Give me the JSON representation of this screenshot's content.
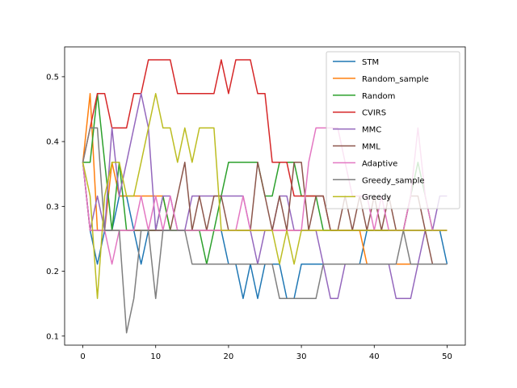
{
  "chart_data": {
    "type": "line",
    "title": "",
    "xlabel": "",
    "ylabel": "",
    "xlim": [
      -2.5,
      52.5
    ],
    "ylim": [
      0.086,
      0.546
    ],
    "xticks": [
      0,
      10,
      20,
      30,
      40,
      50
    ],
    "yticks": [
      0.1,
      0.2,
      0.3,
      0.4,
      0.5
    ],
    "xtick_labels": [
      "0",
      "10",
      "20",
      "30",
      "40",
      "50"
    ],
    "ytick_labels": [
      "0.1",
      "0.2",
      "0.3",
      "0.4",
      "0.5"
    ],
    "grid": false,
    "legend_position": "top-right",
    "x": [
      0,
      1,
      2,
      3,
      4,
      5,
      6,
      7,
      8,
      9,
      10,
      11,
      12,
      13,
      14,
      15,
      16,
      17,
      18,
      19,
      20,
      21,
      22,
      23,
      24,
      25,
      26,
      27,
      28,
      29,
      30,
      31,
      32,
      33,
      34,
      35,
      36,
      37,
      38,
      39,
      40,
      41,
      42,
      43,
      44,
      45,
      46,
      47,
      48,
      49,
      50
    ],
    "series": [
      {
        "name": "STM",
        "color": "#1f77b4",
        "values": [
          0.368,
          0.263,
          0.211,
          0.263,
          0.263,
          0.316,
          0.316,
          0.263,
          0.211,
          0.263,
          0.263,
          0.263,
          0.263,
          0.263,
          0.263,
          0.263,
          0.263,
          0.263,
          0.263,
          0.263,
          0.211,
          0.211,
          0.158,
          0.211,
          0.158,
          0.211,
          0.211,
          0.211,
          0.158,
          0.158,
          0.211,
          0.211,
          0.211,
          0.211,
          0.211,
          0.211,
          0.211,
          0.211,
          0.211,
          0.263,
          0.263,
          0.263,
          0.263,
          0.263,
          0.263,
          0.263,
          0.263,
          0.263,
          0.263,
          0.263,
          0.211
        ]
      },
      {
        "name": "Random_sample",
        "color": "#ff7f0e",
        "values": [
          0.368,
          0.474,
          0.263,
          0.263,
          0.368,
          0.316,
          0.316,
          0.316,
          0.316,
          0.316,
          0.316,
          0.316,
          0.263,
          0.263,
          0.263,
          0.263,
          0.263,
          0.263,
          0.263,
          0.263,
          0.263,
          0.263,
          0.263,
          0.263,
          0.263,
          0.263,
          0.263,
          0.263,
          0.263,
          0.263,
          0.263,
          0.263,
          0.263,
          0.263,
          0.263,
          0.263,
          0.263,
          0.263,
          0.263,
          0.211,
          0.211,
          0.211,
          0.211,
          0.211,
          0.211,
          0.211,
          0.211,
          0.211,
          0.211,
          0.211,
          0.211
        ]
      },
      {
        "name": "Random",
        "color": "#2ca02c",
        "values": [
          0.368,
          0.368,
          0.474,
          0.368,
          0.263,
          0.368,
          0.263,
          0.263,
          0.263,
          0.263,
          0.263,
          0.316,
          0.263,
          0.263,
          0.263,
          0.263,
          0.263,
          0.211,
          0.263,
          0.316,
          0.368,
          0.368,
          0.368,
          0.368,
          0.368,
          0.316,
          0.316,
          0.368,
          0.368,
          0.368,
          0.316,
          0.316,
          0.316,
          0.263,
          0.263,
          0.263,
          0.263,
          0.263,
          0.263,
          0.263,
          0.263,
          0.263,
          0.263,
          0.263,
          0.263,
          0.316,
          0.368,
          0.316,
          0.263,
          0.263,
          0.263
        ]
      },
      {
        "name": "CVIRS",
        "color": "#d62728",
        "values": [
          0.368,
          0.421,
          0.474,
          0.474,
          0.421,
          0.421,
          0.421,
          0.474,
          0.474,
          0.526,
          0.526,
          0.526,
          0.526,
          0.474,
          0.474,
          0.474,
          0.474,
          0.474,
          0.474,
          0.526,
          0.474,
          0.526,
          0.526,
          0.526,
          0.474,
          0.474,
          0.368,
          0.368,
          0.368,
          0.316,
          0.316,
          0.316,
          0.316,
          0.316,
          0.263,
          0.263,
          0.263,
          0.263,
          0.263,
          0.263,
          0.263,
          0.263,
          0.263,
          0.263,
          0.263,
          0.263,
          0.263,
          0.263,
          0.263,
          0.263,
          0.263
        ]
      },
      {
        "name": "MMC",
        "color": "#9467bd",
        "values": [
          0.368,
          0.263,
          0.316,
          0.263,
          0.421,
          0.316,
          0.368,
          0.421,
          0.474,
          0.421,
          0.263,
          0.316,
          0.316,
          0.263,
          0.263,
          0.316,
          0.316,
          0.316,
          0.316,
          0.316,
          0.316,
          0.316,
          0.316,
          0.263,
          0.211,
          0.263,
          0.263,
          0.316,
          0.316,
          0.263,
          0.263,
          0.263,
          0.263,
          0.211,
          0.158,
          0.158,
          0.211,
          0.211,
          0.211,
          0.211,
          0.211,
          0.211,
          0.211,
          0.158,
          0.158,
          0.158,
          0.211,
          0.263,
          0.263,
          0.316,
          0.316
        ]
      },
      {
        "name": "MML",
        "color": "#8c564b",
        "values": [
          0.368,
          0.263,
          0.263,
          0.263,
          0.263,
          0.263,
          0.263,
          0.263,
          0.263,
          0.263,
          0.263,
          0.263,
          0.263,
          0.316,
          0.368,
          0.263,
          0.316,
          0.263,
          0.316,
          0.316,
          0.263,
          0.263,
          0.263,
          0.263,
          0.368,
          0.316,
          0.263,
          0.316,
          0.263,
          0.368,
          0.368,
          0.263,
          0.316,
          0.316,
          0.263,
          0.263,
          0.316,
          0.263,
          0.316,
          0.263,
          0.316,
          0.263,
          0.316,
          0.263,
          0.263,
          0.316,
          0.316,
          0.263,
          0.211,
          0.211,
          0.211
        ]
      },
      {
        "name": "Adaptive",
        "color": "#e377c2",
        "values": [
          0.368,
          0.263,
          0.263,
          0.263,
          0.211,
          0.263,
          0.263,
          0.263,
          0.316,
          0.263,
          0.316,
          0.263,
          0.316,
          0.263,
          0.263,
          0.263,
          0.263,
          0.263,
          0.263,
          0.263,
          0.263,
          0.263,
          0.316,
          0.263,
          0.263,
          0.263,
          0.263,
          0.263,
          0.263,
          0.263,
          0.263,
          0.368,
          0.421,
          0.421,
          0.421,
          0.421,
          0.368,
          0.316,
          0.316,
          0.316,
          0.263,
          0.316,
          0.263,
          0.263,
          0.263,
          0.316,
          0.421,
          0.316,
          0.263,
          0.263,
          0.263
        ]
      },
      {
        "name": "Greedy_sample",
        "color": "#7f7f7f",
        "values": [
          0.368,
          0.421,
          0.421,
          0.263,
          0.263,
          0.263,
          0.105,
          0.158,
          0.263,
          0.263,
          0.158,
          0.263,
          0.263,
          0.263,
          0.263,
          0.211,
          0.211,
          0.211,
          0.211,
          0.211,
          0.211,
          0.211,
          0.211,
          0.211,
          0.211,
          0.211,
          0.211,
          0.158,
          0.158,
          0.158,
          0.158,
          0.158,
          0.158,
          0.211,
          0.211,
          0.211,
          0.211,
          0.211,
          0.211,
          0.211,
          0.211,
          0.211,
          0.211,
          0.211,
          0.263,
          0.211,
          0.211,
          0.211,
          0.211,
          0.211,
          0.211
        ]
      },
      {
        "name": "Greedy",
        "color": "#bcbd22",
        "values": [
          0.368,
          0.316,
          0.158,
          0.316,
          0.368,
          0.368,
          0.316,
          0.316,
          0.368,
          0.421,
          0.474,
          0.421,
          0.421,
          0.368,
          0.421,
          0.368,
          0.421,
          0.421,
          0.421,
          0.263,
          0.263,
          0.263,
          0.263,
          0.263,
          0.263,
          0.263,
          0.263,
          0.211,
          0.263,
          0.211,
          0.263,
          0.263,
          0.263,
          0.263,
          0.263,
          0.263,
          0.263,
          0.263,
          0.263,
          0.263,
          0.263,
          0.263,
          0.263,
          0.263,
          0.263,
          0.263,
          0.263,
          0.263,
          0.263,
          0.263,
          0.263
        ]
      }
    ]
  }
}
